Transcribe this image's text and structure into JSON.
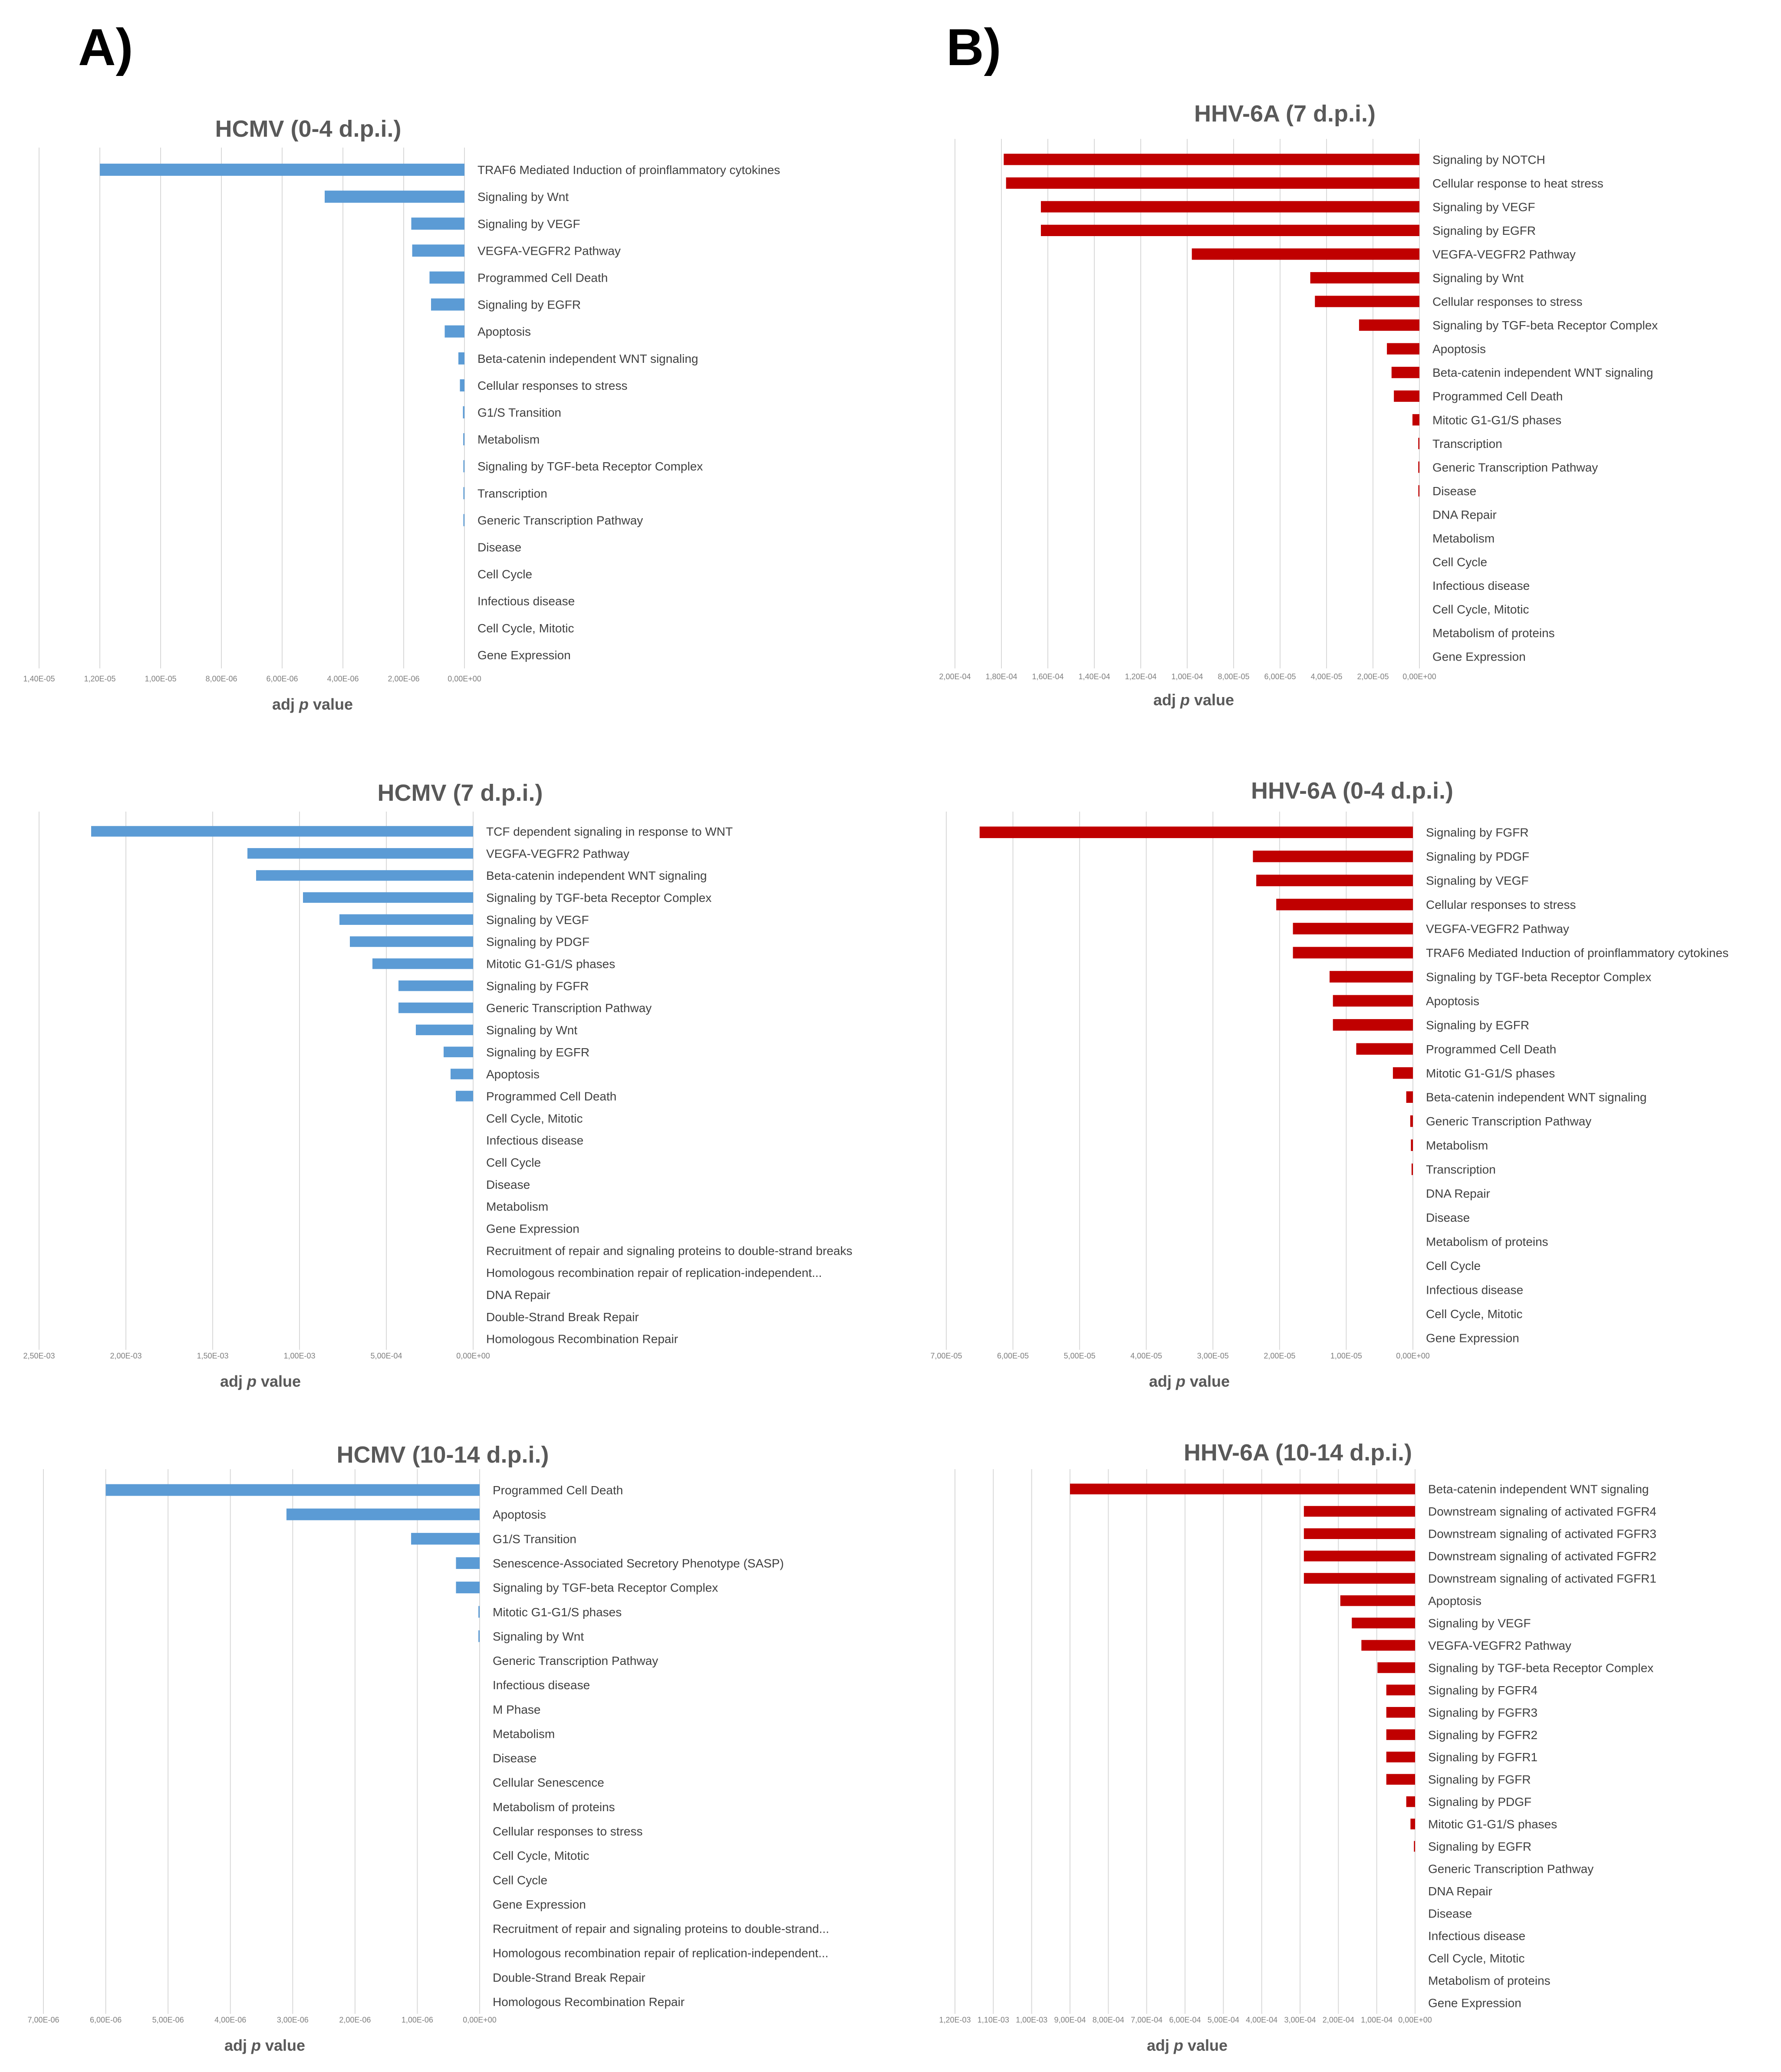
{
  "panels": {
    "a_label": "A)",
    "b_label": "B)"
  },
  "chart_data": [
    {
      "type": "bar",
      "orientation": "horizontal-reversed",
      "title": "HCMV (0-4 d.p.i.)",
      "xlabel_prefix": "adj ",
      "xlabel_italic": "p",
      "xlabel_suffix": " value",
      "xlim": [
        0,
        1.4e-05
      ],
      "xticks": [
        "1,40E-05",
        "1,20E-05",
        "1,00E-05",
        "8,00E-06",
        "6,00E-06",
        "4,00E-06",
        "2,00E-06",
        "0,00E+00"
      ],
      "color": "#5b9bd5",
      "categories": [
        "TRAF6 Mediated Induction of proinflammatory cytokines",
        "Signaling by Wnt",
        "Signaling by VEGF",
        "VEGFA-VEGFR2 Pathway",
        "Programmed Cell Death",
        "Signaling by EGFR",
        "Apoptosis",
        "Beta-catenin independent WNT signaling",
        "Cellular responses to stress",
        "G1/S Transition",
        "Metabolism",
        "Signaling by TGF-beta Receptor Complex",
        "Transcription",
        "Generic Transcription Pathway",
        "Disease",
        "Cell Cycle",
        "Infectious disease",
        "Cell Cycle, Mitotic",
        "Gene Expression"
      ],
      "values": [
        1.2e-05,
        4.6e-06,
        1.75e-06,
        1.72e-06,
        1.15e-06,
        1.1e-06,
        6.5e-07,
        2e-07,
        1.5e-07,
        5e-08,
        4e-08,
        3e-08,
        2e-08,
        2e-08,
        0,
        0,
        0,
        0,
        0
      ]
    },
    {
      "type": "bar",
      "orientation": "horizontal-reversed",
      "title": "HHV-6A (7 d.p.i.)",
      "xlabel_prefix": "adj ",
      "xlabel_italic": "p",
      "xlabel_suffix": " value",
      "xlim": [
        0,
        0.0002
      ],
      "xticks": [
        "2,00E-04",
        "1,80E-04",
        "1,60E-04",
        "1,40E-04",
        "1,20E-04",
        "1,00E-04",
        "8,00E-05",
        "6,00E-05",
        "4,00E-05",
        "2,00E-05",
        "0,00E+00"
      ],
      "color": "#c00000",
      "categories": [
        "Signaling by NOTCH",
        "Cellular response to heat stress",
        "Signaling by VEGF",
        "Signaling by EGFR",
        "VEGFA-VEGFR2 Pathway",
        "Signaling by Wnt",
        "Cellular responses to stress",
        "Signaling by TGF-beta Receptor Complex",
        "Apoptosis",
        "Beta-catenin independent WNT signaling",
        "Programmed Cell Death",
        "Mitotic G1-G1/S phases",
        "Transcription",
        "Generic Transcription Pathway",
        "Disease",
        "DNA Repair",
        "Metabolism",
        "Cell Cycle",
        "Infectious disease",
        "Cell Cycle, Mitotic",
        "Metabolism of proteins",
        "Gene Expression"
      ],
      "values": [
        0.000179,
        0.000178,
        0.000163,
        0.000163,
        9.8e-05,
        4.7e-05,
        4.5e-05,
        2.6e-05,
        1.4e-05,
        1.2e-05,
        1.1e-05,
        3e-06,
        5e-07,
        5e-07,
        2e-07,
        0,
        0,
        0,
        0,
        0,
        0,
        0
      ]
    },
    {
      "type": "bar",
      "orientation": "horizontal-reversed",
      "title": "HCMV (7 d.p.i.)",
      "xlabel_prefix": "adj ",
      "xlabel_italic": "p",
      "xlabel_suffix": " value",
      "xlim": [
        0,
        0.0025
      ],
      "xticks": [
        "2,50E-03",
        "2,00E-03",
        "1,50E-03",
        "1,00E-03",
        "5,00E-04",
        "0,00E+00"
      ],
      "color": "#5b9bd5",
      "categories": [
        "TCF dependent signaling in response to WNT",
        "VEGFA-VEGFR2 Pathway",
        "Beta-catenin independent WNT signaling",
        "Signaling by TGF-beta Receptor Complex",
        "Signaling by VEGF",
        "Signaling by PDGF",
        "Mitotic G1-G1/S phases",
        "Signaling by FGFR",
        "Generic Transcription Pathway",
        "Signaling by Wnt",
        "Signaling by EGFR",
        "Apoptosis",
        "Programmed Cell Death",
        "Cell Cycle, Mitotic",
        "Infectious disease",
        "Cell Cycle",
        "Disease",
        "Metabolism",
        "Gene Expression",
        "Recruitment of repair and signaling proteins to double-strand breaks",
        "Homologous recombination repair of replication-independent...",
        "DNA Repair",
        "Double-Strand Break Repair",
        "Homologous Recombination Repair"
      ],
      "values": [
        0.0022,
        0.0013,
        0.00125,
        0.00098,
        0.00077,
        0.00071,
        0.00058,
        0.00043,
        0.00043,
        0.00033,
        0.00017,
        0.00013,
        0.0001,
        0,
        0,
        0,
        0,
        0,
        0,
        0,
        0,
        0,
        0,
        0
      ]
    },
    {
      "type": "bar",
      "orientation": "horizontal-reversed",
      "title": "HHV-6A (0-4 d.p.i.)",
      "xlabel_prefix": "adj ",
      "xlabel_italic": "p",
      "xlabel_suffix": " value",
      "xlim": [
        0,
        7e-05
      ],
      "xticks": [
        "7,00E-05",
        "6,00E-05",
        "5,00E-05",
        "4,00E-05",
        "3,00E-05",
        "2,00E-05",
        "1,00E-05",
        "0,00E+00"
      ],
      "color": "#c00000",
      "categories": [
        "Signaling by FGFR",
        "Signaling by PDGF",
        "Signaling by VEGF",
        "Cellular responses to stress",
        "VEGFA-VEGFR2 Pathway",
        "TRAF6 Mediated Induction of proinflammatory cytokines",
        "Signaling by TGF-beta Receptor Complex",
        "Apoptosis",
        "Signaling by EGFR",
        "Programmed Cell Death",
        "Mitotic G1-G1/S phases",
        "Beta-catenin independent WNT signaling",
        "Generic Transcription Pathway",
        "Metabolism",
        "Transcription",
        "DNA Repair",
        "Disease",
        "Metabolism of proteins",
        "Cell Cycle",
        "Infectious disease",
        "Cell Cycle, Mitotic",
        "Gene Expression"
      ],
      "values": [
        6.5e-05,
        2.4e-05,
        2.35e-05,
        2.05e-05,
        1.8e-05,
        1.8e-05,
        1.25e-05,
        1.2e-05,
        1.2e-05,
        8.5e-06,
        3e-06,
        1e-06,
        4e-07,
        3e-07,
        2e-07,
        0,
        0,
        0,
        0,
        0,
        0,
        0
      ]
    },
    {
      "type": "bar",
      "orientation": "horizontal-reversed",
      "title": "HCMV (10-14 d.p.i.)",
      "xlabel_prefix": "adj ",
      "xlabel_italic": "p",
      "xlabel_suffix": " value",
      "xlim": [
        0,
        7e-06
      ],
      "xticks": [
        "7,00E-06",
        "6,00E-06",
        "5,00E-06",
        "4,00E-06",
        "3,00E-06",
        "2,00E-06",
        "1,00E-06",
        "0,00E+00"
      ],
      "color": "#5b9bd5",
      "categories": [
        "Programmed Cell Death",
        "Apoptosis",
        "G1/S Transition",
        "Senescence-Associated Secretory Phenotype (SASP)",
        "Signaling by TGF-beta Receptor Complex",
        "Mitotic G1-G1/S phases",
        "Signaling by Wnt",
        "Generic Transcription Pathway",
        "Infectious disease",
        "M Phase",
        "Metabolism",
        "Disease",
        "Cellular Senescence",
        "Metabolism of proteins",
        "Cellular responses to stress",
        "Cell Cycle, Mitotic",
        "Cell Cycle",
        "Gene Expression",
        "Recruitment of repair and signaling proteins to double-strand...",
        "Homologous recombination repair of replication-independent...",
        "Double-Strand Break Repair",
        "Homologous Recombination Repair"
      ],
      "values": [
        6e-06,
        3.1e-06,
        1.1e-06,
        3.8e-07,
        3.8e-07,
        2e-08,
        2e-08,
        0,
        0,
        0,
        0,
        0,
        0,
        0,
        0,
        0,
        0,
        0,
        0,
        0,
        0,
        0
      ]
    },
    {
      "type": "bar",
      "orientation": "horizontal-reversed",
      "title": "HHV-6A (10-14 d.p.i.)",
      "xlabel_prefix": "adj ",
      "xlabel_italic": "p",
      "xlabel_suffix": " value",
      "xlim": [
        0,
        0.0012
      ],
      "xticks": [
        "1,20E-03",
        "1,10E-03",
        "1,00E-03",
        "9,00E-04",
        "8,00E-04",
        "7,00E-04",
        "6,00E-04",
        "5,00E-04",
        "4,00E-04",
        "3,00E-04",
        "2,00E-04",
        "1,00E-04",
        "0,00E+00"
      ],
      "color": "#c00000",
      "categories": [
        "Beta-catenin independent WNT signaling",
        "Downstream signaling of activated FGFR4",
        "Downstream signaling of activated FGFR3",
        "Downstream signaling of activated FGFR2",
        "Downstream signaling of activated FGFR1",
        "Apoptosis",
        "Signaling by VEGF",
        "VEGFA-VEGFR2 Pathway",
        "Signaling by TGF-beta Receptor Complex",
        "Signaling by FGFR4",
        "Signaling by FGFR3",
        "Signaling by FGFR2",
        "Signaling by FGFR1",
        "Signaling by FGFR",
        "Signaling by PDGF",
        "Mitotic G1-G1/S phases",
        "Signaling by EGFR",
        "Generic Transcription Pathway",
        "DNA Repair",
        "Disease",
        "Infectious disease",
        "Cell Cycle, Mitotic",
        "Metabolism of proteins",
        "Gene Expression"
      ],
      "values": [
        0.0009,
        0.00029,
        0.00029,
        0.00029,
        0.00029,
        0.000195,
        0.000165,
        0.00014,
        9.8e-05,
        7.5e-05,
        7.5e-05,
        7.5e-05,
        7.5e-05,
        7.5e-05,
        2.3e-05,
        1.2e-05,
        3e-06,
        0,
        0,
        0,
        0,
        0,
        0,
        0
      ]
    }
  ]
}
